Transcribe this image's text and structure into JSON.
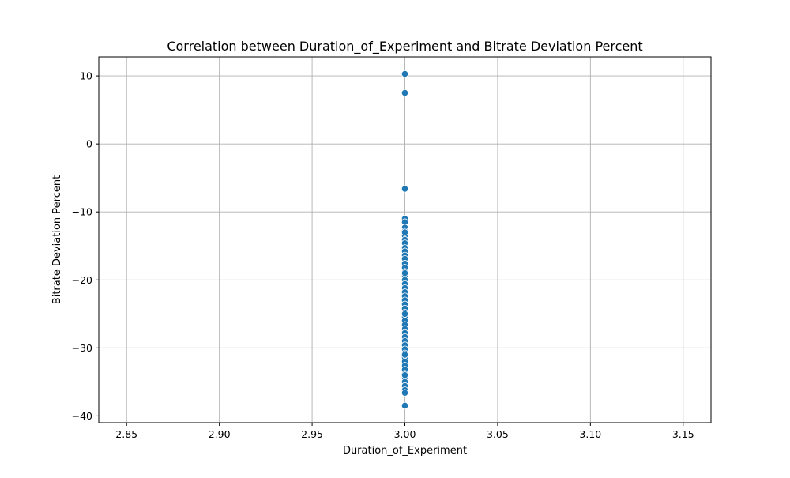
{
  "chart_data": {
    "type": "scatter",
    "title": "Correlation between Duration_of_Experiment and Bitrate Deviation Percent",
    "xlabel": "Duration_of_Experiment",
    "ylabel": "Bitrate Deviation Percent",
    "xlim": [
      2.835,
      3.165
    ],
    "ylim": [
      -41.0,
      12.8
    ],
    "x_ticks": [
      "2.85",
      "2.90",
      "2.95",
      "3.00",
      "3.05",
      "3.10",
      "3.15"
    ],
    "x_tick_values": [
      2.85,
      2.9,
      2.95,
      3.0,
      3.05,
      3.1,
      3.15
    ],
    "y_ticks": [
      "10",
      "0",
      "−10",
      "−20",
      "−30",
      "−40"
    ],
    "y_tick_values": [
      10,
      0,
      -10,
      -20,
      -30,
      -40
    ],
    "grid": true,
    "marker_color": "#1f77b4",
    "series": [
      {
        "x": [
          3.0,
          3.0,
          3.0,
          3.0,
          3.0,
          3.0,
          3.0,
          3.0,
          3.0,
          3.0,
          3.0,
          3.0,
          3.0,
          3.0,
          3.0,
          3.0,
          3.0,
          3.0,
          3.0,
          3.0,
          3.0,
          3.0,
          3.0,
          3.0,
          3.0,
          3.0,
          3.0,
          3.0,
          3.0,
          3.0,
          3.0,
          3.0,
          3.0,
          3.0,
          3.0,
          3.0,
          3.0,
          3.0,
          3.0,
          3.0,
          3.0,
          3.0,
          3.0,
          3.0,
          3.0,
          3.0,
          3.0,
          3.0,
          3.0,
          3.0,
          3.0,
          3.0,
          3.0
        ],
        "y": [
          10.3,
          7.5,
          -6.6,
          -11.0,
          -11.5,
          -12.3,
          -12.8,
          -13.5,
          -14.1,
          -14.6,
          -15.3,
          -15.8,
          -16.4,
          -16.9,
          -17.6,
          -18.2,
          -18.8,
          -19.4,
          -20.0,
          -20.6,
          -21.2,
          -21.8,
          -22.4,
          -23.0,
          -23.6,
          -24.2,
          -24.8,
          -25.4,
          -26.0,
          -26.6,
          -27.2,
          -27.8,
          -28.4,
          -29.0,
          -29.6,
          -30.2,
          -30.8,
          -31.4,
          -32.0,
          -32.6,
          -33.2,
          -33.8,
          -34.4,
          -35.0,
          -35.6,
          -36.2,
          -36.6,
          -38.5,
          -13.0,
          -19.0,
          -25.0,
          -31.0,
          -34.0
        ]
      }
    ]
  }
}
